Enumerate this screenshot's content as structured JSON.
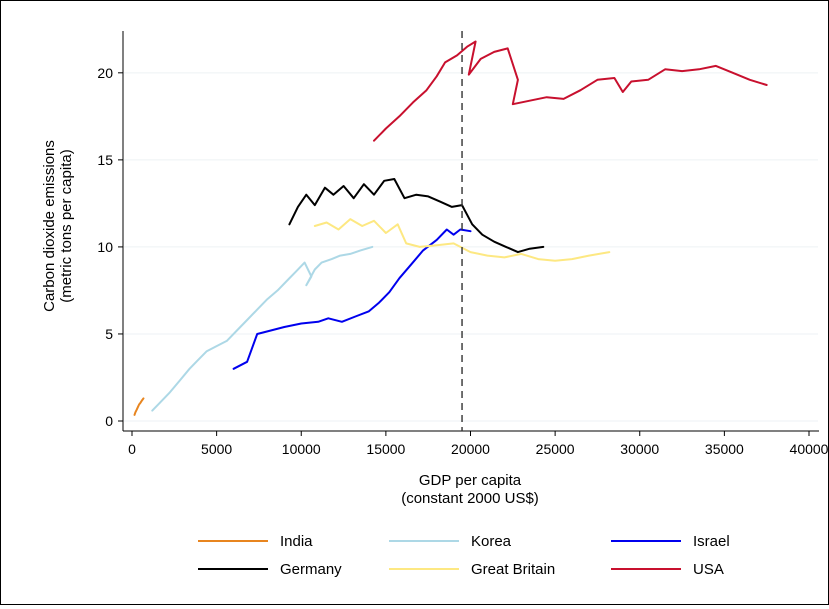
{
  "chart_data": {
    "type": "line",
    "xlabel_lines": [
      "GDP per capita",
      "(constant 2000 US$)"
    ],
    "ylabel_lines": [
      "Carbon dioxide emissions",
      "(metric tons per capita)"
    ],
    "xlim": [
      0,
      40000
    ],
    "ylim": [
      0,
      22
    ],
    "xticks": [
      0,
      5000,
      10000,
      15000,
      20000,
      25000,
      30000,
      35000,
      40000
    ],
    "yticks": [
      0,
      5,
      10,
      15,
      20
    ],
    "grid": "horizontal",
    "legend_position": "bottom",
    "reference_line": {
      "x": 19500,
      "style": "dashed"
    },
    "series": [
      {
        "name": "India",
        "color": "#e8851f",
        "x": [
          150,
          200,
          280,
          350,
          420,
          500,
          600,
          680
        ],
        "y": [
          0.35,
          0.5,
          0.65,
          0.8,
          0.95,
          1.05,
          1.2,
          1.3
        ]
      },
      {
        "name": "Korea",
        "color": "#add8e6",
        "x": [
          1200,
          1600,
          2200,
          2800,
          3400,
          3900,
          4400,
          5000,
          5600,
          6200,
          6800,
          7400,
          8000,
          8600,
          9200,
          9700,
          10200,
          10600,
          10300,
          10800,
          11200,
          11800,
          12300,
          12900,
          13500,
          14200
        ],
        "y": [
          0.6,
          1.0,
          1.6,
          2.3,
          3.0,
          3.5,
          4.0,
          4.3,
          4.6,
          5.2,
          5.8,
          6.4,
          7.0,
          7.5,
          8.1,
          8.6,
          9.1,
          8.3,
          7.8,
          8.7,
          9.1,
          9.3,
          9.5,
          9.6,
          9.8,
          10.0
        ]
      },
      {
        "name": "Israel",
        "color": "#0000ee",
        "x": [
          6000,
          6800,
          7400,
          8200,
          9000,
          10000,
          11000,
          11600,
          12400,
          13200,
          14000,
          14600,
          15200,
          15800,
          16500,
          17200,
          18000,
          18600,
          19000,
          19400,
          20000
        ],
        "y": [
          3.0,
          3.4,
          5.0,
          5.2,
          5.4,
          5.6,
          5.7,
          5.9,
          5.7,
          6.0,
          6.3,
          6.8,
          7.4,
          8.2,
          9.0,
          9.8,
          10.4,
          11.0,
          10.7,
          11.0,
          10.9
        ]
      },
      {
        "name": "Germany",
        "color": "#000000",
        "x": [
          9300,
          9800,
          10300,
          10800,
          11400,
          11900,
          12500,
          13100,
          13700,
          14300,
          14900,
          15500,
          16100,
          16800,
          17500,
          18200,
          18900,
          19500,
          20100,
          20700,
          21400,
          22100,
          22800,
          23500,
          24300
        ],
        "y": [
          11.3,
          12.3,
          13.0,
          12.4,
          13.4,
          13.0,
          13.5,
          12.8,
          13.6,
          13.0,
          13.8,
          13.9,
          12.8,
          13.0,
          12.9,
          12.6,
          12.3,
          12.4,
          11.3,
          10.7,
          10.3,
          10.0,
          9.7,
          9.9,
          10.0
        ]
      },
      {
        "name": "Great Britain",
        "color": "#fde882",
        "x": [
          10800,
          11500,
          12200,
          12900,
          13600,
          14300,
          15000,
          15700,
          16200,
          17000,
          18000,
          19000,
          20000,
          21000,
          22000,
          23000,
          24000,
          25000,
          26000,
          27000,
          28200
        ],
        "y": [
          11.2,
          11.4,
          11.0,
          11.6,
          11.2,
          11.5,
          10.8,
          11.3,
          10.2,
          10.0,
          10.1,
          10.2,
          9.7,
          9.5,
          9.4,
          9.6,
          9.3,
          9.2,
          9.3,
          9.5,
          9.7
        ]
      },
      {
        "name": "USA",
        "color": "#c8102e",
        "x": [
          14300,
          15000,
          15800,
          16600,
          17400,
          18000,
          18500,
          19200,
          19800,
          20300,
          19900,
          20600,
          21400,
          22200,
          22800,
          22500,
          23500,
          24500,
          25500,
          26500,
          27500,
          28500,
          29000,
          29500,
          30500,
          31500,
          32500,
          33500,
          34500,
          35500,
          36500,
          37500
        ],
        "y": [
          16.1,
          16.8,
          17.5,
          18.3,
          19.0,
          19.8,
          20.6,
          21.0,
          21.5,
          21.8,
          19.9,
          20.8,
          21.2,
          21.4,
          19.6,
          18.2,
          18.4,
          18.6,
          18.5,
          19.0,
          19.6,
          19.7,
          18.9,
          19.5,
          19.6,
          20.2,
          20.1,
          20.2,
          20.4,
          20.0,
          19.6,
          19.3
        ]
      }
    ]
  }
}
